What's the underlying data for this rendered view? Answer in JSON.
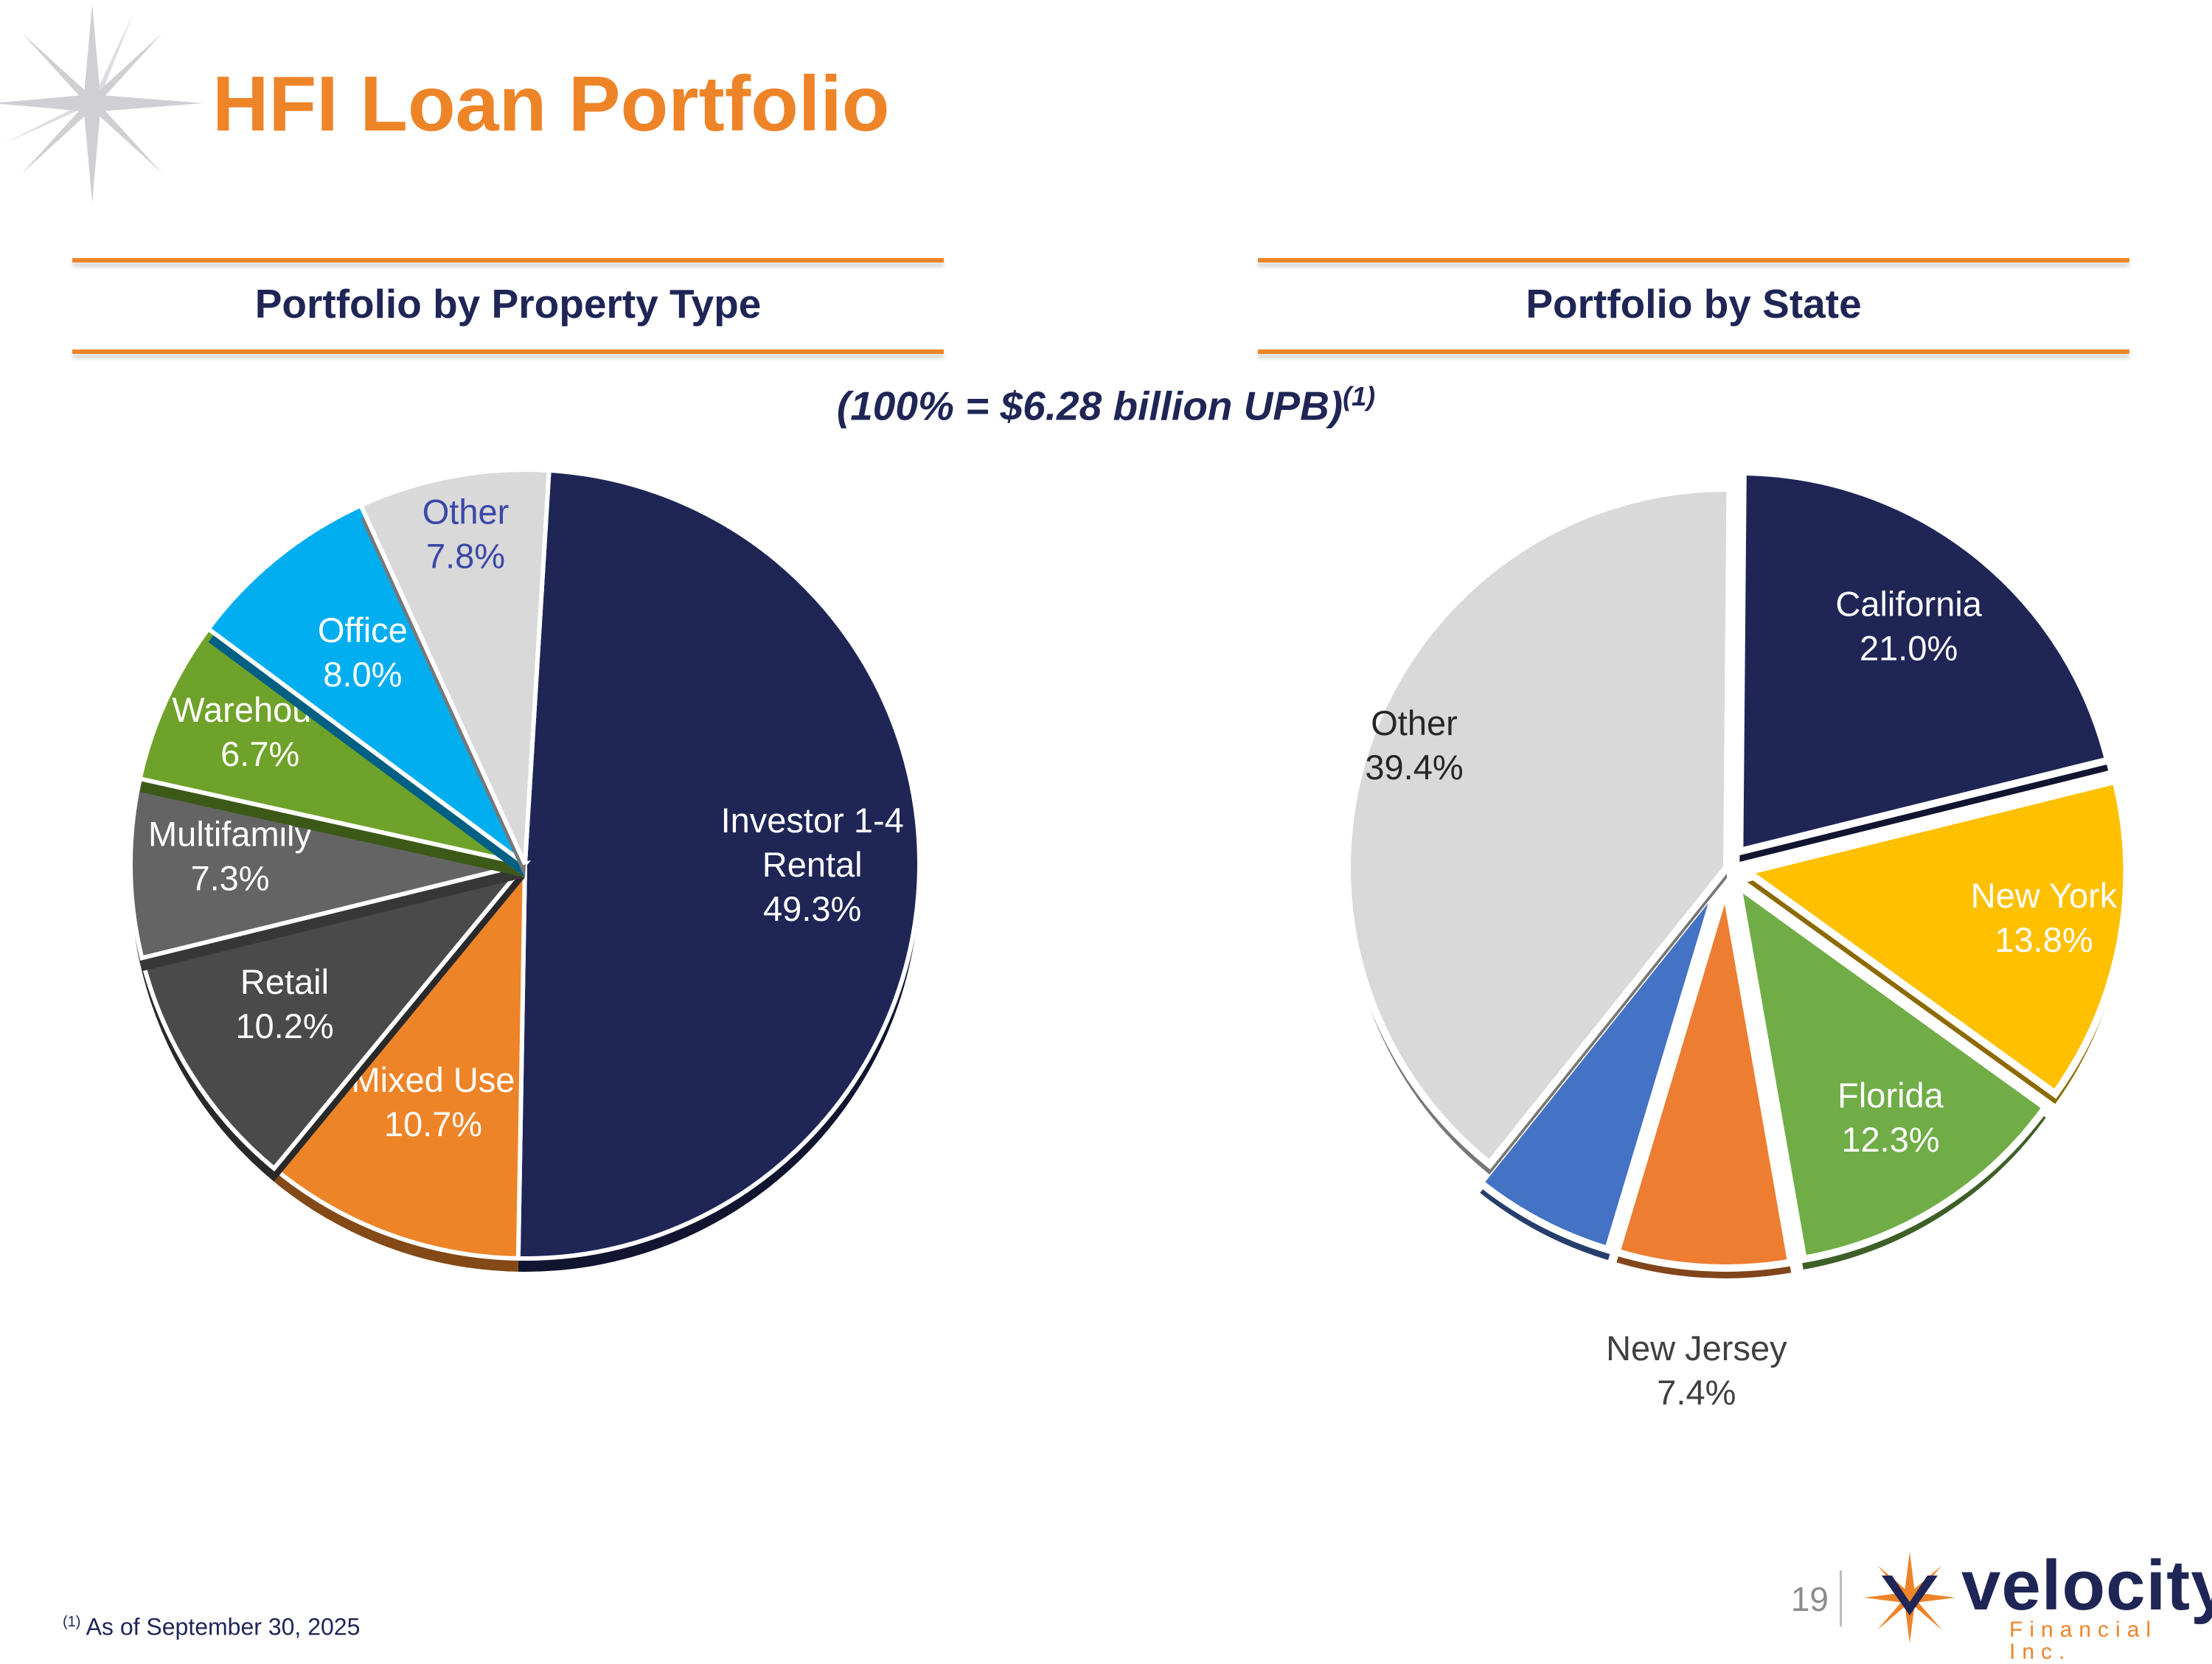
{
  "title": "HFI Loan Portfolio",
  "total_note": "(100% = $6.28 billion UPB)",
  "total_note_ref": "(1)",
  "footnote": {
    "marker": "(1)",
    "text": "As of September 30, 2025"
  },
  "page_number": "19",
  "logo": {
    "name": "velocity",
    "subtitle": "Financial Inc."
  },
  "chart_data": [
    {
      "type": "pie",
      "title": "Portfolio by Property Type",
      "slices": [
        {
          "label": "Investor 1-4 Rental",
          "value": 49.3,
          "value_label": "49.3%",
          "color": "#1f2656",
          "text_color": "#ffffff"
        },
        {
          "label": "Mixed Use",
          "value": 10.7,
          "value_label": "10.7%",
          "color": "#ee8428",
          "text_color": "#ffffff"
        },
        {
          "label": "Retail",
          "value": 10.2,
          "value_label": "10.2%",
          "color": "#4a4a4a",
          "text_color": "#ffffff"
        },
        {
          "label": "Multifamily",
          "value": 7.3,
          "value_label": "7.3%",
          "color": "#646464",
          "text_color": "#ffffff"
        },
        {
          "label": "Warehouse",
          "value": 6.7,
          "value_label": "6.7%",
          "color": "#6fa22a",
          "text_color": "#ffffff"
        },
        {
          "label": "Office",
          "value": 8.0,
          "value_label": "8.0%",
          "color": "#00aeef",
          "text_color": "#ffffff"
        },
        {
          "label": "Other",
          "value": 7.8,
          "value_label": "7.8%",
          "color": "#d9d9d9",
          "text_color": "#3b47a8"
        }
      ]
    },
    {
      "type": "pie",
      "title": "Portfolio by State",
      "slices": [
        {
          "label": "California",
          "value": 21.0,
          "value_label": "21.0%",
          "color": "#1f2656",
          "text_color": "#ffffff"
        },
        {
          "label": "New York",
          "value": 13.8,
          "value_label": "13.8%",
          "color": "#ffc000",
          "text_color": "#ffffff"
        },
        {
          "label": "Florida",
          "value": 12.3,
          "value_label": "12.3%",
          "color": "#70ad47",
          "text_color": "#ffffff"
        },
        {
          "label": "New Jersey",
          "value": 7.4,
          "value_label": "7.4%",
          "color": "#ed7d31",
          "text_color": "#404040"
        },
        {
          "label": "",
          "value": 6.1,
          "value_label": "",
          "color": "#4472c4",
          "text_color": "#ffffff"
        },
        {
          "label": "Other",
          "value": 39.4,
          "value_label": "39.4%",
          "color": "#d9d9d9",
          "text_color": "#262626"
        }
      ]
    }
  ]
}
